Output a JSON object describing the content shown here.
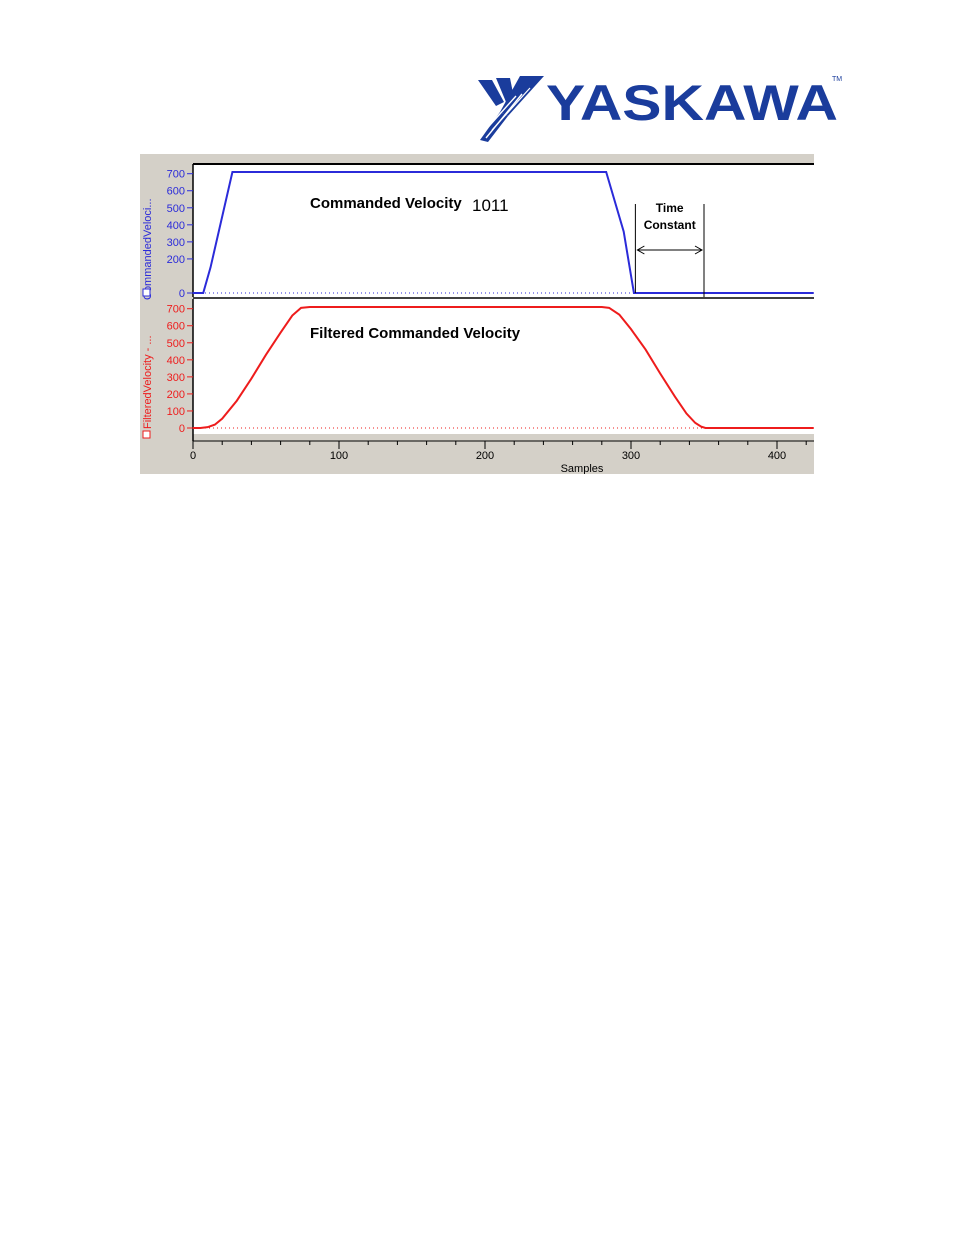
{
  "brand": {
    "name": "YASKAWA",
    "trademark": "TM",
    "color": "#1a3c9c"
  },
  "chart_data": [
    {
      "type": "line",
      "title": "Commanded Velocity",
      "title_suffix": "1011",
      "ylabel": "CommandedVeloci...",
      "ylim": [
        0,
        750
      ],
      "yticks": [
        0,
        200,
        300,
        400,
        500,
        600,
        700
      ],
      "xlim": [
        0,
        425
      ],
      "grid": false,
      "color": "#2b2bd9",
      "series": [
        {
          "x": [
            0,
            7,
            12,
            27,
            283,
            295,
            302,
            425
          ],
          "y": [
            0,
            0,
            150,
            710,
            710,
            360,
            0,
            0
          ]
        }
      ],
      "annotation": {
        "label_line1": "Time",
        "label_line2": "Constant",
        "x_start": 303,
        "x_end": 350
      }
    },
    {
      "type": "line",
      "title": "Filtered Commanded Velocity",
      "ylabel": "FilteredVelocity - ...",
      "xlabel": "Samples",
      "ylim": [
        0,
        750
      ],
      "yticks": [
        0,
        100,
        200,
        300,
        400,
        500,
        600,
        700
      ],
      "xlim": [
        0,
        425
      ],
      "xticks": [
        0,
        100,
        200,
        300,
        400
      ],
      "grid": false,
      "color": "#ee1c1c",
      "series": [
        {
          "x": [
            0,
            5,
            10,
            15,
            20,
            30,
            40,
            50,
            60,
            68,
            74,
            80,
            280,
            285,
            292,
            300,
            310,
            320,
            330,
            338,
            344,
            348,
            351,
            425
          ],
          "y": [
            0,
            0,
            5,
            20,
            55,
            160,
            290,
            430,
            560,
            660,
            705,
            710,
            710,
            705,
            665,
            580,
            460,
            320,
            185,
            85,
            30,
            8,
            0,
            0
          ]
        }
      ]
    }
  ]
}
